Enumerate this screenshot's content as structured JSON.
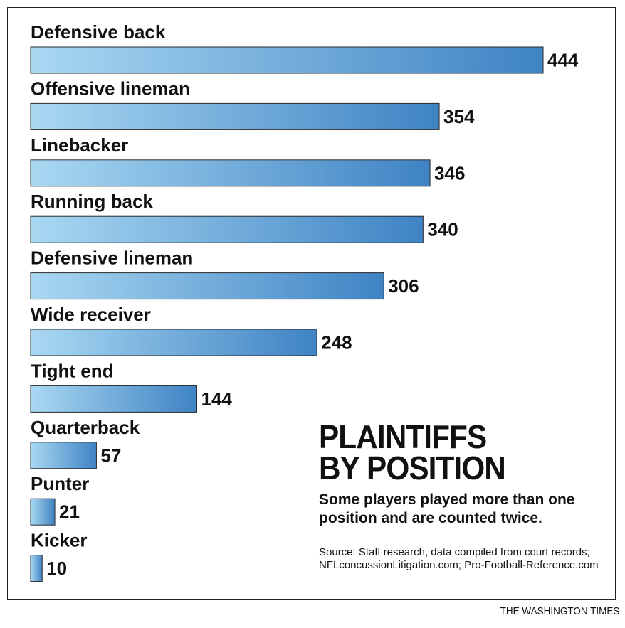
{
  "chart_data": {
    "type": "bar",
    "orientation": "horizontal",
    "categories": [
      "Defensive back",
      "Offensive lineman",
      "Linebacker",
      "Running back",
      "Defensive lineman",
      "Wide receiver",
      "Tight end",
      "Quarterback",
      "Punter",
      "Kicker"
    ],
    "values": [
      444,
      354,
      346,
      340,
      306,
      248,
      144,
      57,
      21,
      10
    ],
    "value_labels": [
      "444",
      "354",
      "346",
      "340",
      "306",
      "248",
      "144",
      "57",
      "21",
      "10"
    ],
    "title_lines": [
      "PLAINTIFFS",
      "BY POSITION"
    ],
    "subtitle": "Some players played more than one position and are counted twice.",
    "source": "Source: Staff research, data compiled from court records; NFLconcussionLitigation.com; Pro-Football-Reference.com",
    "xlim": [
      0,
      444
    ],
    "grid": false,
    "legend": "none",
    "bar_gradient": [
      "#a9d8f2",
      "#3f83c4"
    ]
  },
  "credit": "THE WASHINGTON TIMES"
}
